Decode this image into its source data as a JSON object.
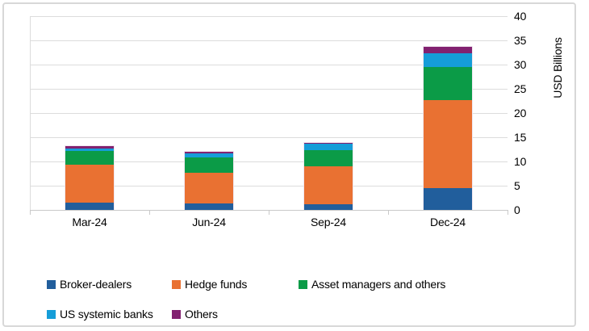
{
  "chart_data": {
    "type": "bar",
    "stacked": true,
    "title": "",
    "categories": [
      "Mar-24",
      "Jun-24",
      "Sep-24",
      "Dec-24"
    ],
    "series": [
      {
        "name": "Broker-dealers",
        "color": "#215E9C",
        "values": [
          1.5,
          1.3,
          1.2,
          4.5
        ]
      },
      {
        "name": "Hedge funds",
        "color": "#E97132",
        "values": [
          7.9,
          6.4,
          7.8,
          18.2
        ]
      },
      {
        "name": "Asset managers and others",
        "color": "#0B9B47",
        "values": [
          2.7,
          3.2,
          3.4,
          6.8
        ]
      },
      {
        "name": "US systemic banks",
        "color": "#159DD8",
        "values": [
          0.6,
          0.8,
          1.2,
          2.9
        ]
      },
      {
        "name": "Others",
        "color": "#822170",
        "values": [
          0.4,
          0.3,
          0.3,
          1.2
        ]
      }
    ],
    "xlabel": "",
    "ylabel": "USD Billions",
    "yticks": [
      0,
      5,
      10,
      15,
      20,
      25,
      30,
      35,
      40
    ],
    "ylim": [
      0,
      40
    ],
    "grid": true,
    "legend_position": "bottom"
  }
}
